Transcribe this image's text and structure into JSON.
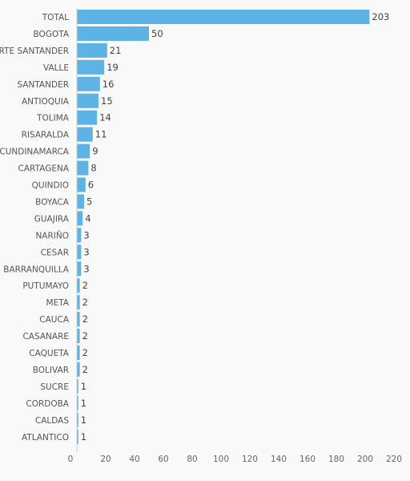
{
  "chart_data": {
    "type": "bar",
    "orientation": "horizontal",
    "title": "",
    "xlabel": "",
    "ylabel": "",
    "categories": [
      "TOTAL",
      "BOGOTA",
      "NORTE SANTANDER",
      "VALLE",
      "SANTANDER",
      "ANTIOQUIA",
      "TOLIMA",
      "RISARALDA",
      "CUNDINAMARCA",
      "CARTAGENA",
      "QUINDIO",
      "BOYACA",
      "GUAJIRA",
      "NARIÑO",
      "CESAR",
      "BARRANQUILLA",
      "PUTUMAYO",
      "META",
      "CAUCA",
      "CASANARE",
      "CAQUETA",
      "BOLIVAR",
      "SUCRE",
      "CORDOBA",
      "CALDAS",
      "ATLANTICO"
    ],
    "values": [
      203,
      50,
      21,
      19,
      16,
      15,
      14,
      11,
      9,
      8,
      6,
      5,
      4,
      3,
      3,
      3,
      2,
      2,
      2,
      2,
      2,
      2,
      1,
      1,
      1,
      1
    ],
    "xlim": [
      0,
      220
    ],
    "xticks": [
      0,
      20,
      40,
      60,
      80,
      100,
      120,
      140,
      160,
      180,
      200,
      220
    ],
    "grid": false,
    "colors": {
      "bar": "#5db3e3",
      "axis": "#cccccc",
      "background": "#f9f9f9"
    }
  }
}
